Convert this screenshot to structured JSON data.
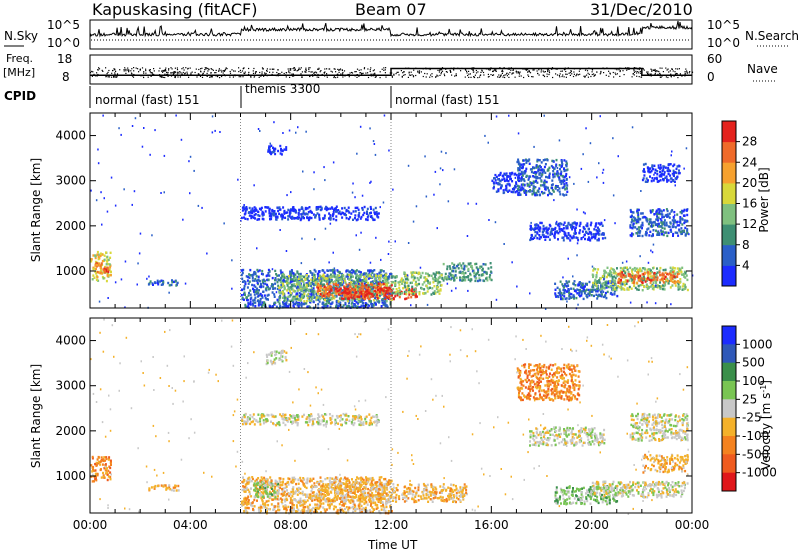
{
  "header": {
    "station": "Kapuskasing (fitACF)",
    "beam": "Beam 07",
    "date": "31/Dec/2010"
  },
  "top_panels": {
    "nsky_label": "N.Sky",
    "nsearch_label": "N.Search",
    "freq_label_1": "Freq.",
    "freq_label_2": "[MHz]",
    "nave_label": "Nave",
    "cpid_label": "CPID",
    "noise_left_ticks": [
      "10^5",
      "10^0"
    ],
    "noise_right_ticks": [
      "10^5",
      "10^0"
    ],
    "freq_ticks": [
      "18",
      "8"
    ],
    "nave_ticks": [
      "60",
      "0"
    ],
    "cpid_segments": [
      {
        "label": "normal (fast) 151",
        "start": 0,
        "end": 6
      },
      {
        "label": "themis 3300",
        "start": 6,
        "end": 12
      },
      {
        "label": "normal (fast) 151",
        "start": 12,
        "end": 24
      }
    ],
    "nave_levels": [
      {
        "start": 0,
        "end": 12,
        "value": 18
      },
      {
        "start": 12,
        "end": 22,
        "value": 32
      },
      {
        "start": 22,
        "end": 24,
        "value": 18
      }
    ]
  },
  "chart_data": [
    {
      "type": "heatmap",
      "quantity": "power",
      "ylabel": "Slant Range [km]",
      "xlabel": "Time UT",
      "x_ticks": [
        "00:00",
        "04:00",
        "08:00",
        "12:00",
        "16:00",
        "20:00",
        "00:00"
      ],
      "x_range_hours": [
        0,
        24
      ],
      "y_ticks": [
        1000,
        2000,
        3000,
        4000
      ],
      "ylim": [
        180,
        4500
      ],
      "colorbar_label": "Power [dB]",
      "colorbar_ticks": [
        4,
        8,
        12,
        16,
        20,
        24,
        28
      ],
      "colorbar_colors": [
        "#1c2cff",
        "#2a5fc8",
        "#3e8f73",
        "#7fc07f",
        "#d8d83a",
        "#f6a12f",
        "#ef6a2a",
        "#e4221d"
      ],
      "regions": [
        {
          "t0": 0.0,
          "t1": 0.8,
          "r0": 800,
          "r1": 1450,
          "level": 4
        },
        {
          "t0": 0.2,
          "t1": 0.7,
          "r0": 950,
          "r1": 1200,
          "level": 6
        },
        {
          "t0": 2.3,
          "t1": 3.5,
          "r0": 700,
          "r1": 820,
          "level": 1
        },
        {
          "t0": 6.0,
          "t1": 12.0,
          "r0": 200,
          "r1": 1050,
          "level": 1
        },
        {
          "t0": 7.5,
          "t1": 12.0,
          "r0": 350,
          "r1": 950,
          "level": 3
        },
        {
          "t0": 9.0,
          "t1": 12.0,
          "r0": 450,
          "r1": 750,
          "level": 6
        },
        {
          "t0": 10.0,
          "t1": 13.0,
          "r0": 400,
          "r1": 650,
          "level": 7
        },
        {
          "t0": 12.0,
          "t1": 14.0,
          "r0": 500,
          "r1": 1000,
          "level": 3
        },
        {
          "t0": 6.0,
          "t1": 11.5,
          "r0": 2150,
          "r1": 2450,
          "level": 0
        },
        {
          "t0": 7.0,
          "t1": 7.8,
          "r0": 3600,
          "r1": 3800,
          "level": 0
        },
        {
          "t0": 14.0,
          "t1": 16.0,
          "r0": 800,
          "r1": 1200,
          "level": 2
        },
        {
          "t0": 16.0,
          "t1": 17.2,
          "r0": 2750,
          "r1": 3200,
          "level": 0
        },
        {
          "t0": 17.0,
          "t1": 19.0,
          "r0": 2700,
          "r1": 3500,
          "level": 1
        },
        {
          "t0": 17.5,
          "t1": 20.5,
          "r0": 1700,
          "r1": 2100,
          "level": 0
        },
        {
          "t0": 18.5,
          "t1": 21.0,
          "r0": 400,
          "r1": 800,
          "level": 1
        },
        {
          "t0": 20.0,
          "t1": 23.8,
          "r0": 600,
          "r1": 1100,
          "level": 3
        },
        {
          "t0": 21.0,
          "t1": 23.5,
          "r0": 750,
          "r1": 1000,
          "level": 6
        },
        {
          "t0": 21.5,
          "t1": 23.8,
          "r0": 1800,
          "r1": 2400,
          "level": 1
        },
        {
          "t0": 22.0,
          "t1": 23.5,
          "r0": 3000,
          "r1": 3400,
          "level": 0
        }
      ]
    },
    {
      "type": "heatmap",
      "quantity": "velocity",
      "ylabel": "Slant Range [km]",
      "xlabel": "Time UT",
      "x_ticks": [
        "00:00",
        "04:00",
        "08:00",
        "12:00",
        "16:00",
        "20:00",
        "00:00"
      ],
      "x_range_hours": [
        0,
        24
      ],
      "y_ticks": [
        1000,
        2000,
        3000,
        4000
      ],
      "ylim": [
        180,
        4500
      ],
      "colorbar_label": "Velocity [m s^-1]",
      "colorbar_ticks": [
        1000,
        500,
        100,
        25,
        -25,
        -100,
        -500,
        -1000
      ],
      "colorbar_colors": [
        "#1c2cff",
        "#2f58b8",
        "#3a8f4a",
        "#79c553",
        "#c8c8c8",
        "#f4b12a",
        "#f4821f",
        "#ef5b1f",
        "#e0171b"
      ],
      "regions": [
        {
          "t0": 0.0,
          "t1": 0.8,
          "r0": 900,
          "r1": 1450,
          "level": 6
        },
        {
          "t0": 2.3,
          "t1": 3.5,
          "r0": 700,
          "r1": 820,
          "level": 5
        },
        {
          "t0": 6.0,
          "t1": 12.0,
          "r0": 200,
          "r1": 1000,
          "level": 5
        },
        {
          "t0": 6.5,
          "t1": 7.5,
          "r0": 550,
          "r1": 900,
          "level": 3
        },
        {
          "t0": 9.0,
          "t1": 12.0,
          "r0": 450,
          "r1": 900,
          "level": 5
        },
        {
          "t0": 12.0,
          "t1": 15.0,
          "r0": 450,
          "r1": 850,
          "level": 5
        },
        {
          "t0": 6.0,
          "t1": 11.5,
          "r0": 2150,
          "r1": 2400,
          "level": 4
        },
        {
          "t0": 7.0,
          "t1": 7.8,
          "r0": 3500,
          "r1": 3800,
          "level": 4
        },
        {
          "t0": 17.0,
          "t1": 19.5,
          "r0": 2700,
          "r1": 3500,
          "level": 6
        },
        {
          "t0": 17.5,
          "t1": 20.5,
          "r0": 1700,
          "r1": 2100,
          "level": 4
        },
        {
          "t0": 18.5,
          "t1": 21.0,
          "r0": 400,
          "r1": 800,
          "level": 3
        },
        {
          "t0": 20.0,
          "t1": 23.8,
          "r0": 550,
          "r1": 900,
          "level": 4
        },
        {
          "t0": 22.0,
          "t1": 23.8,
          "r0": 1100,
          "r1": 1500,
          "level": 5
        },
        {
          "t0": 21.5,
          "t1": 23.8,
          "r0": 1800,
          "r1": 2400,
          "level": 4
        }
      ]
    }
  ]
}
